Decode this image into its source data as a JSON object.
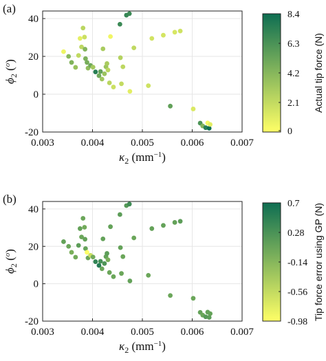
{
  "chart_data": [
    {
      "type": "scatter",
      "panel_label": "(a)",
      "xlabel_symbol": "κ",
      "xlabel_sub": "2",
      "xlabel_unit": " (mm",
      "xlabel_sup": "−1",
      "xlabel_close": ")",
      "ylabel_symbol": "ϕ",
      "ylabel_sub": "2",
      "ylabel_unit": " (",
      "ylabel_sup": "o",
      "ylabel_close": ")",
      "xlim": [
        0.003,
        0.007
      ],
      "ylim": [
        -20,
        44
      ],
      "xticks": [
        "0.003",
        "0.004",
        "0.005",
        "0.006",
        "0.007"
      ],
      "yticks": [
        "-20",
        "0",
        "20",
        "40"
      ],
      "grid": true,
      "colorbar": {
        "label": "Actual tip force (N)",
        "range": [
          0,
          8.4
        ],
        "ticks": [
          "8.4",
          "6.3",
          "4.2",
          "2.1",
          "0"
        ],
        "colors": [
          "#ffff66",
          "#0e6e52"
        ]
      },
      "points": [
        {
          "x": 0.00342,
          "y": 22.5,
          "c": 0.6
        },
        {
          "x": 0.00352,
          "y": 20.0,
          "c": 4.2
        },
        {
          "x": 0.00358,
          "y": 16.8,
          "c": 4.4
        },
        {
          "x": 0.00366,
          "y": 14.2,
          "c": 3.6
        },
        {
          "x": 0.00372,
          "y": 20.5,
          "c": 2.2
        },
        {
          "x": 0.00375,
          "y": 29.5,
          "c": 0.9
        },
        {
          "x": 0.00378,
          "y": 25.0,
          "c": 2.3
        },
        {
          "x": 0.00381,
          "y": 35.0,
          "c": 2.4
        },
        {
          "x": 0.00384,
          "y": 30.2,
          "c": 1.8
        },
        {
          "x": 0.00385,
          "y": 23.8,
          "c": 4.3
        },
        {
          "x": 0.00386,
          "y": 18.8,
          "c": 4.6
        },
        {
          "x": 0.00389,
          "y": 16.8,
          "c": 4.7
        },
        {
          "x": 0.00391,
          "y": 13.8,
          "c": 3.8
        },
        {
          "x": 0.00396,
          "y": 15.2,
          "c": 5.0
        },
        {
          "x": 0.00401,
          "y": 14.3,
          "c": 3.2
        },
        {
          "x": 0.00406,
          "y": 11.8,
          "c": 7.5
        },
        {
          "x": 0.00413,
          "y": 9.8,
          "c": 5.0
        },
        {
          "x": 0.00416,
          "y": 12.0,
          "c": 5.4
        },
        {
          "x": 0.00419,
          "y": 8.0,
          "c": 3.3
        },
        {
          "x": 0.00421,
          "y": 24.0,
          "c": 3.0
        },
        {
          "x": 0.00424,
          "y": 10.8,
          "c": 3.5
        },
        {
          "x": 0.00427,
          "y": 14.5,
          "c": 3.5
        },
        {
          "x": 0.00429,
          "y": 16.2,
          "c": 3.0
        },
        {
          "x": 0.00431,
          "y": 12.8,
          "c": 2.4
        },
        {
          "x": 0.00434,
          "y": 6.0,
          "c": 2.4
        },
        {
          "x": 0.00436,
          "y": 30.5,
          "c": 0.5
        },
        {
          "x": 0.00442,
          "y": 3.8,
          "c": 1.8
        },
        {
          "x": 0.00455,
          "y": 37.0,
          "c": 6.8
        },
        {
          "x": 0.00456,
          "y": 19.3,
          "c": 2.6
        },
        {
          "x": 0.00458,
          "y": 5.5,
          "c": 2.1
        },
        {
          "x": 0.00461,
          "y": 14.5,
          "c": 2.3
        },
        {
          "x": 0.00468,
          "y": 41.8,
          "c": 7.0
        },
        {
          "x": 0.00474,
          "y": 42.6,
          "c": 6.8
        },
        {
          "x": 0.00475,
          "y": 1.5,
          "c": 1.0
        },
        {
          "x": 0.00483,
          "y": 24.5,
          "c": 2.2
        },
        {
          "x": 0.00512,
          "y": 4.5,
          "c": 1.7
        },
        {
          "x": 0.00519,
          "y": 29.5,
          "c": 1.6
        },
        {
          "x": 0.00542,
          "y": 31.2,
          "c": 1.5
        },
        {
          "x": 0.00556,
          "y": -6.3,
          "c": 5.5
        },
        {
          "x": 0.00565,
          "y": 32.8,
          "c": 1.4
        },
        {
          "x": 0.00576,
          "y": 33.4,
          "c": 1.7
        },
        {
          "x": 0.00602,
          "y": -7.8,
          "c": 1.3
        },
        {
          "x": 0.00616,
          "y": -15.3,
          "c": 6.2
        },
        {
          "x": 0.00621,
          "y": -16.8,
          "c": 4.4
        },
        {
          "x": 0.00627,
          "y": -17.7,
          "c": 7.5
        },
        {
          "x": 0.00631,
          "y": -15.2,
          "c": 0.3
        },
        {
          "x": 0.00634,
          "y": -18.0,
          "c": 8.4
        },
        {
          "x": 0.00636,
          "y": -16.0,
          "c": 1.0
        }
      ]
    },
    {
      "type": "scatter",
      "panel_label": "(b)",
      "xlabel_symbol": "κ",
      "xlabel_sub": "2",
      "xlabel_unit": " (mm",
      "xlabel_sup": "−1",
      "xlabel_close": ")",
      "ylabel_symbol": "ϕ",
      "ylabel_sub": "2",
      "ylabel_unit": " (",
      "ylabel_sup": "o",
      "ylabel_close": ")",
      "xlim": [
        0.003,
        0.007
      ],
      "ylim": [
        -20,
        44
      ],
      "xticks": [
        "0.003",
        "0.004",
        "0.005",
        "0.006",
        "0.007"
      ],
      "yticks": [
        "-20",
        "0",
        "20",
        "40"
      ],
      "grid": true,
      "colorbar": {
        "label": "Tip force error using GP (N)",
        "range": [
          -0.98,
          0.7
        ],
        "ticks": [
          "0.7",
          "0.28",
          "-0.14",
          "-0.56",
          "-0.98"
        ],
        "colors": [
          "#ffff66",
          "#0e6e52"
        ]
      },
      "points": [
        {
          "x": 0.00342,
          "y": 22.5,
          "c": 0.1
        },
        {
          "x": 0.00352,
          "y": 20.0,
          "c": 0.05
        },
        {
          "x": 0.00358,
          "y": 16.8,
          "c": -0.05
        },
        {
          "x": 0.00366,
          "y": 14.2,
          "c": 0.0
        },
        {
          "x": 0.00372,
          "y": 20.5,
          "c": 0.15
        },
        {
          "x": 0.00375,
          "y": 29.5,
          "c": 0.1
        },
        {
          "x": 0.00378,
          "y": 25.0,
          "c": 0.05
        },
        {
          "x": 0.00381,
          "y": 35.0,
          "c": 0.05
        },
        {
          "x": 0.00384,
          "y": 30.2,
          "c": 0.0
        },
        {
          "x": 0.00385,
          "y": 23.8,
          "c": 0.1
        },
        {
          "x": 0.00386,
          "y": 18.8,
          "c": 0.1
        },
        {
          "x": 0.00389,
          "y": 16.8,
          "c": -0.98
        },
        {
          "x": 0.00391,
          "y": 13.8,
          "c": 0.05
        },
        {
          "x": 0.00396,
          "y": 15.2,
          "c": -0.6
        },
        {
          "x": 0.00401,
          "y": 14.3,
          "c": 0.0
        },
        {
          "x": 0.00406,
          "y": 11.8,
          "c": 0.45
        },
        {
          "x": 0.00413,
          "y": 9.8,
          "c": 0.55
        },
        {
          "x": 0.00416,
          "y": 12.0,
          "c": 0.3
        },
        {
          "x": 0.00419,
          "y": 8.0,
          "c": 0.05
        },
        {
          "x": 0.00421,
          "y": 24.0,
          "c": 0.1
        },
        {
          "x": 0.00424,
          "y": 10.8,
          "c": 0.25
        },
        {
          "x": 0.00427,
          "y": 14.5,
          "c": 0.1
        },
        {
          "x": 0.00429,
          "y": 16.2,
          "c": 0.15
        },
        {
          "x": 0.00431,
          "y": 12.8,
          "c": -0.05
        },
        {
          "x": 0.00434,
          "y": 6.0,
          "c": 0.05
        },
        {
          "x": 0.00436,
          "y": 30.5,
          "c": 0.1
        },
        {
          "x": 0.00442,
          "y": 3.8,
          "c": 0.05
        },
        {
          "x": 0.00455,
          "y": 37.0,
          "c": 0.15
        },
        {
          "x": 0.00456,
          "y": 19.3,
          "c": 0.1
        },
        {
          "x": 0.00458,
          "y": 5.5,
          "c": 0.05
        },
        {
          "x": 0.00461,
          "y": 14.5,
          "c": 0.05
        },
        {
          "x": 0.00468,
          "y": 41.8,
          "c": 0.2
        },
        {
          "x": 0.00474,
          "y": 42.6,
          "c": 0.35
        },
        {
          "x": 0.00475,
          "y": 1.5,
          "c": 0.1
        },
        {
          "x": 0.00483,
          "y": 24.5,
          "c": 0.05
        },
        {
          "x": 0.00512,
          "y": 4.5,
          "c": 0.05
        },
        {
          "x": 0.00519,
          "y": 29.5,
          "c": 0.1
        },
        {
          "x": 0.00542,
          "y": 31.2,
          "c": 0.1
        },
        {
          "x": 0.00556,
          "y": -6.3,
          "c": 0.05
        },
        {
          "x": 0.00565,
          "y": 32.8,
          "c": 0.1
        },
        {
          "x": 0.00576,
          "y": 33.4,
          "c": 0.15
        },
        {
          "x": 0.00602,
          "y": -7.8,
          "c": 0.05
        },
        {
          "x": 0.00616,
          "y": -15.3,
          "c": 0.1
        },
        {
          "x": 0.00621,
          "y": -16.8,
          "c": 0.05
        },
        {
          "x": 0.00627,
          "y": -17.7,
          "c": 0.2
        },
        {
          "x": 0.00631,
          "y": -15.2,
          "c": 0.1
        },
        {
          "x": 0.00634,
          "y": -18.0,
          "c": 0.15
        },
        {
          "x": 0.00636,
          "y": -16.0,
          "c": 0.1
        }
      ]
    }
  ]
}
